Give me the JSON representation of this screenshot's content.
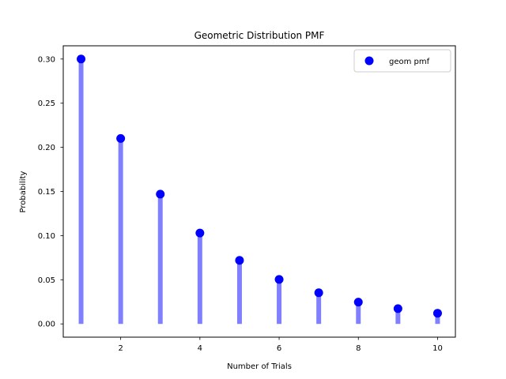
{
  "chart_data": {
    "type": "scatter",
    "title": "Geometric Distribution PMF",
    "xlabel": "Number of Trials",
    "ylabel": "Probability",
    "xlim": [
      0.55,
      10.45
    ],
    "ylim": [
      -0.015,
      0.315
    ],
    "x_ticks": [
      2,
      4,
      6,
      8,
      10
    ],
    "x_tick_labels": [
      "2",
      "4",
      "6",
      "8",
      "10"
    ],
    "y_ticks": [
      0.0,
      0.05,
      0.1,
      0.15,
      0.2,
      0.25,
      0.3
    ],
    "y_tick_labels": [
      "0.00",
      "0.05",
      "0.10",
      "0.15",
      "0.20",
      "0.25",
      "0.30"
    ],
    "legend_position": "top-right",
    "grid": false,
    "series": [
      {
        "name": "geom pmf",
        "marker_color": "#0000ff",
        "stem_color": "#8080ff",
        "x": [
          1,
          2,
          3,
          4,
          5,
          6,
          7,
          8,
          9,
          10
        ],
        "values": [
          0.3,
          0.21,
          0.147,
          0.1029,
          0.072,
          0.0504,
          0.0353,
          0.0247,
          0.0173,
          0.0121
        ]
      }
    ]
  }
}
